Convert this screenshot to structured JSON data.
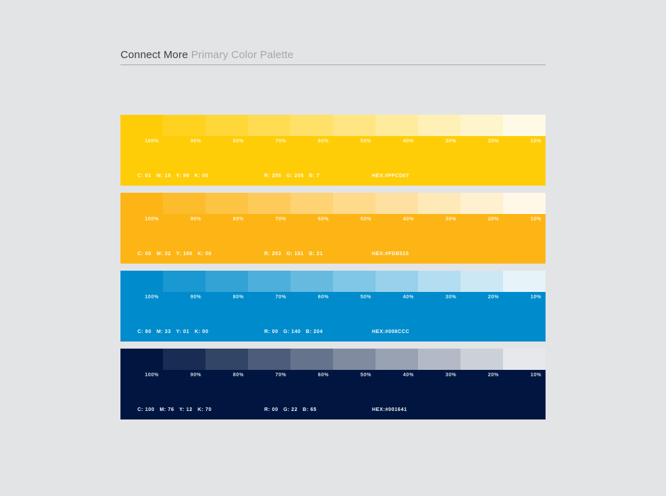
{
  "window": {
    "background": "#E3E4E6"
  },
  "header": {
    "brand": "Connect More",
    "subtitle": "Primary Color Palette"
  },
  "palette": {
    "tint_labels": [
      "100%",
      "90%",
      "80%",
      "70%",
      "60%",
      "50%",
      "40%",
      "30%",
      "20%",
      "10%"
    ],
    "tint_percents": [
      100,
      90,
      80,
      70,
      60,
      50,
      40,
      30,
      20,
      10
    ],
    "rows": [
      {
        "name": "yellow",
        "base_hex": "#FFCD07",
        "cmyk": "C: 01   M: 18   Y: 99   K: 00",
        "rgb": "R: 255   G: 205   B: 7",
        "hex": "HEX:#FFCD07"
      },
      {
        "name": "orange",
        "base_hex": "#FDB515",
        "cmyk": "C: 00   M: 32   Y: 100   K: 00",
        "rgb": "R: 253   G: 181   B: 21",
        "hex": "HEX:#FDB515"
      },
      {
        "name": "blue",
        "base_hex": "#008CCC",
        "cmyk": "C: 80   M: 33   Y: 01   K: 00",
        "rgb": "R: 00   G: 140   B: 204",
        "hex": "HEX:#008CCC"
      },
      {
        "name": "navy",
        "base_hex": "#001641",
        "cmyk": "C: 100   M: 76   Y: 12   K: 70",
        "rgb": "R: 00   G: 22   B: 65",
        "hex": "HEX:#001641"
      }
    ]
  }
}
